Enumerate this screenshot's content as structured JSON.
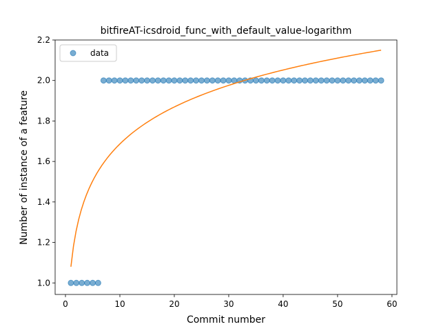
{
  "chart_data": {
    "type": "scatter",
    "title": "bitfireAT-icsdroid_func_with_default_value-logarithm",
    "xlabel": "Commit number",
    "ylabel": "Number of instance of a feature",
    "xlim": [
      -1.9,
      60.9
    ],
    "ylim": [
      0.943,
      2.2
    ],
    "xticks": [
      0,
      10,
      20,
      30,
      40,
      50,
      60
    ],
    "yticks": [
      1.0,
      1.2,
      1.4,
      1.6,
      1.8,
      2.0,
      2.2
    ],
    "xtick_labels": [
      "0",
      "10",
      "20",
      "30",
      "40",
      "50",
      "60"
    ],
    "ytick_labels": [
      "1.0",
      "1.2",
      "1.4",
      "1.6",
      "1.8",
      "2.0",
      "2.2"
    ],
    "legend": {
      "placement": "top-left",
      "entries": [
        "data"
      ]
    },
    "series": [
      {
        "name": "data",
        "kind": "points",
        "color": "#1f77b4",
        "x": [
          1,
          2,
          3,
          4,
          5,
          6,
          7,
          8,
          9,
          10,
          11,
          12,
          13,
          14,
          15,
          16,
          17,
          18,
          19,
          20,
          21,
          22,
          23,
          24,
          25,
          26,
          27,
          28,
          29,
          30,
          31,
          32,
          33,
          34,
          35,
          36,
          37,
          38,
          39,
          40,
          41,
          42,
          43,
          44,
          45,
          46,
          47,
          48,
          49,
          50,
          51,
          52,
          53,
          54,
          55,
          56,
          57,
          58
        ],
        "y": [
          1,
          1,
          1,
          1,
          1,
          1,
          2,
          2,
          2,
          2,
          2,
          2,
          2,
          2,
          2,
          2,
          2,
          2,
          2,
          2,
          2,
          2,
          2,
          2,
          2,
          2,
          2,
          2,
          2,
          2,
          2,
          2,
          2,
          2,
          2,
          2,
          2,
          2,
          2,
          2,
          2,
          2,
          2,
          2,
          2,
          2,
          2,
          2,
          2,
          2,
          2,
          2,
          2,
          2,
          2,
          2,
          2,
          2
        ]
      },
      {
        "kind": "fit-line",
        "color": "#ff7f0e",
        "model": "logarithm",
        "a": 0.2635,
        "b": 1.0798,
        "x_range": [
          1,
          58
        ]
      }
    ]
  }
}
